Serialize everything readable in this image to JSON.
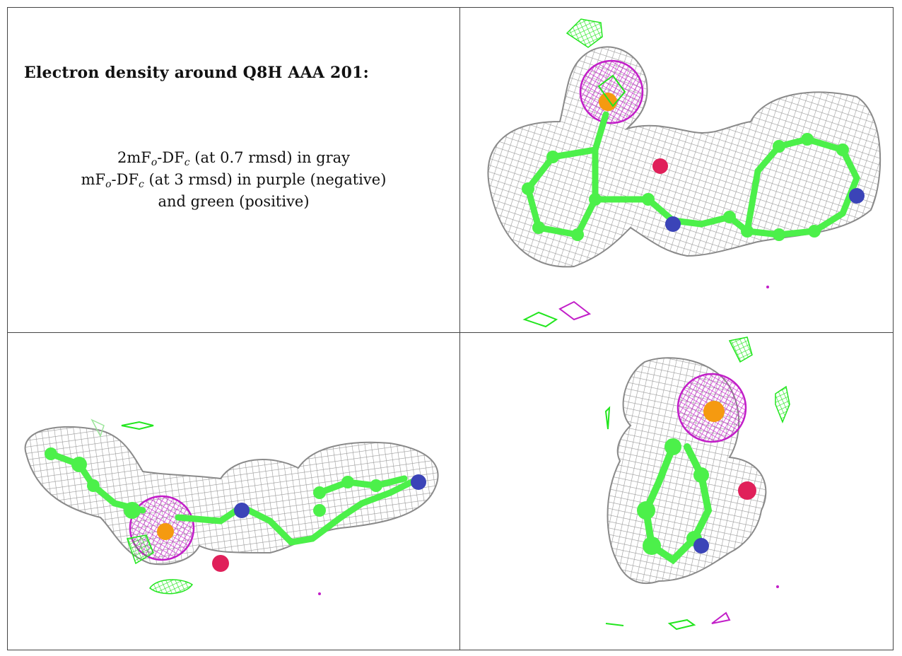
{
  "panel_text": {
    "title": "Electron density around Q8H AAA 201:",
    "line1": {
      "pre": "2mF",
      "sub1": "o",
      "mid": "-DF",
      "sub2": "c",
      "post": " (at 0.7 rmsd) in gray"
    },
    "line2": {
      "pre": "mF",
      "sub1": "o",
      "mid": "-DF",
      "sub2": "c",
      "post": " (at 3 rmsd) in purple (negative)"
    },
    "line3": "and green (positive)"
  },
  "colors": {
    "mesh_gray": "#9a9a9a",
    "positive_green": "#22e61e",
    "negative_purple": "#c21ec8",
    "carbon_green": "#4cf04a",
    "nitrogen_blue": "#3b44b8",
    "oxygen_red": "#e0205a",
    "metal_orange": "#f59a10"
  }
}
